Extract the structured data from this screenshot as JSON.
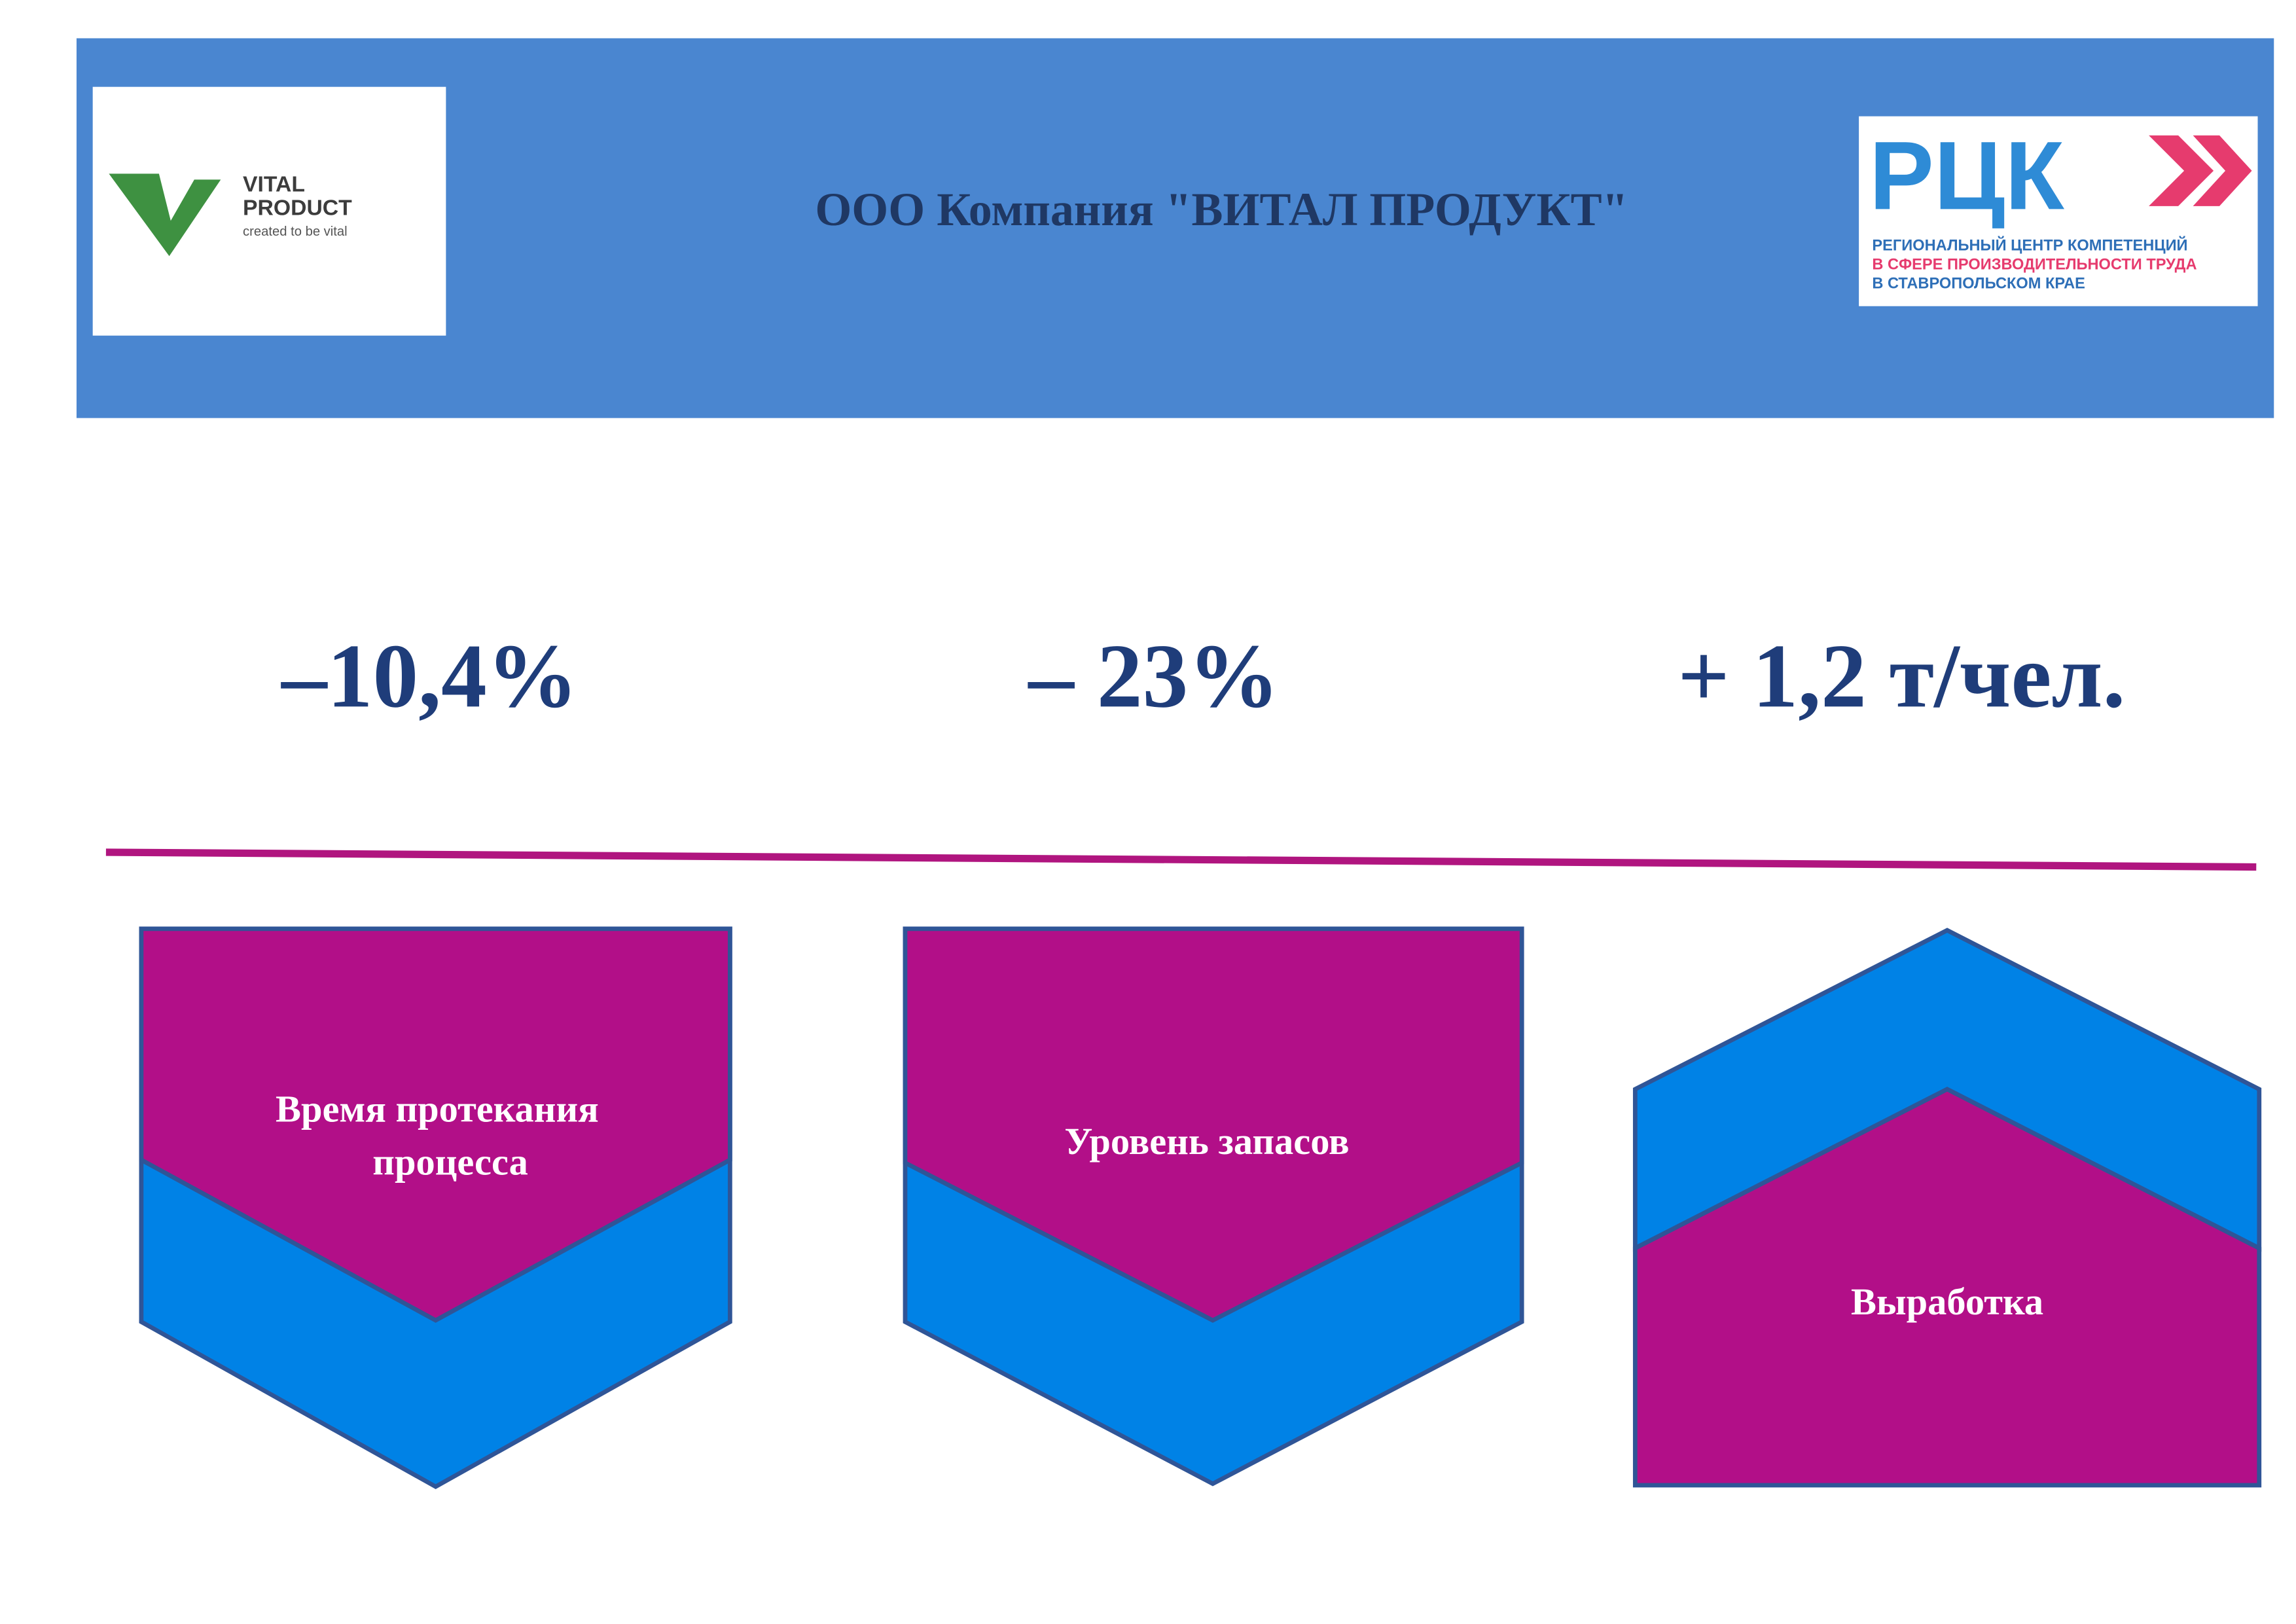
{
  "header": {
    "title": "ООО Компания \"ВИТАЛ ПРОДУКТ\"",
    "left_logo": {
      "lines": [
        "VITAL",
        "PRODUCT"
      ],
      "tagline": "created to be vital"
    },
    "right_logo": {
      "mark": "РЦК",
      "lines": [
        "РЕГИОНАЛЬНЫЙ ЦЕНТР КОМПЕТЕНЦИЙ",
        "В СФЕРЕ ПРОИЗВОДИТЕЛЬНОСТИ ТРУДА",
        "В СТАВРОПОЛЬСКОМ КРАЕ"
      ]
    }
  },
  "metrics": [
    {
      "value": "–10,4%",
      "label_lines": [
        "Время протекания",
        "процесса"
      ]
    },
    {
      "value": "– 23%",
      "label_lines": [
        "Уровень запасов"
      ]
    },
    {
      "value": "+ 1,2 т/чел.",
      "label_lines": [
        "Выработка"
      ]
    }
  ]
}
